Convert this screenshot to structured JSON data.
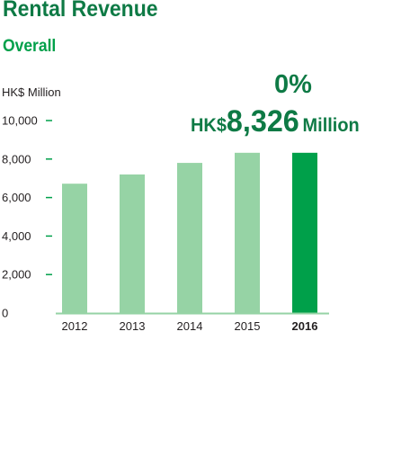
{
  "header": {
    "title": "Rental Revenue",
    "subtitle": "Overall"
  },
  "highlight": {
    "change": "0%",
    "currency": "HK$",
    "amount": "8,326",
    "unit": "Million"
  },
  "chart_data": {
    "type": "bar",
    "ylabel": "HK$ Million",
    "categories": [
      "2012",
      "2013",
      "2014",
      "2015",
      "2016"
    ],
    "values": [
      6720,
      7200,
      7800,
      8326,
      8326
    ],
    "highlighted_category": "2016",
    "ylim": [
      0,
      10000
    ],
    "yticks": [
      0,
      2000,
      4000,
      6000,
      8000,
      10000
    ],
    "ytick_labels": [
      "0",
      "2,000",
      "4,000",
      "6,000",
      "8,000",
      "10,000"
    ],
    "grid": false,
    "colors": {
      "bar": "#96d3a5",
      "highlight": "#00a04a",
      "axis": "#96d3a5",
      "tick": "#00a04a"
    }
  }
}
